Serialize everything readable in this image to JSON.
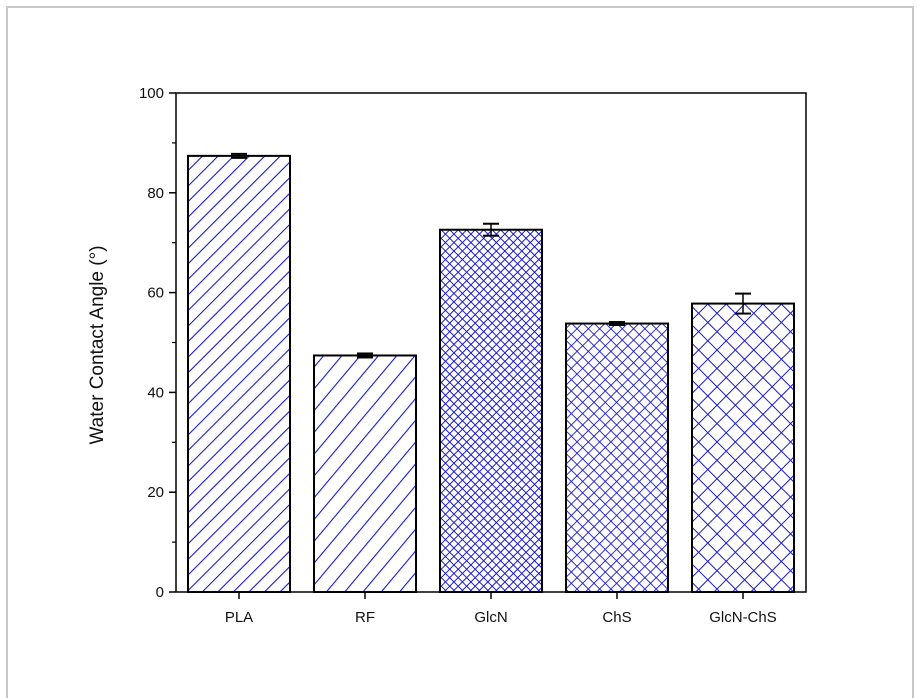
{
  "chart_data": {
    "type": "bar",
    "title": "",
    "xlabel": "",
    "ylabel": "Water Contact Angle (°)",
    "ylim": [
      0,
      100
    ],
    "yticks": [
      "0",
      "20",
      "40",
      "60",
      "80",
      "100"
    ],
    "categories": [
      "PLA",
      "RF",
      "GlcN",
      "ChS",
      "GlcN-ChS"
    ],
    "values": [
      87.4,
      47.4,
      72.6,
      53.8,
      57.8
    ],
    "errors": [
      0.4,
      0.4,
      1.2,
      0.3,
      2.0
    ],
    "patterns": [
      "wide-diagonal",
      "wide-diagonal-sparse",
      "dense-crosshatch",
      "medium-crosshatch",
      "wide-crosshatch"
    ],
    "grid": false,
    "bar_color": "#1a1acc",
    "frame_color": "#000000"
  }
}
